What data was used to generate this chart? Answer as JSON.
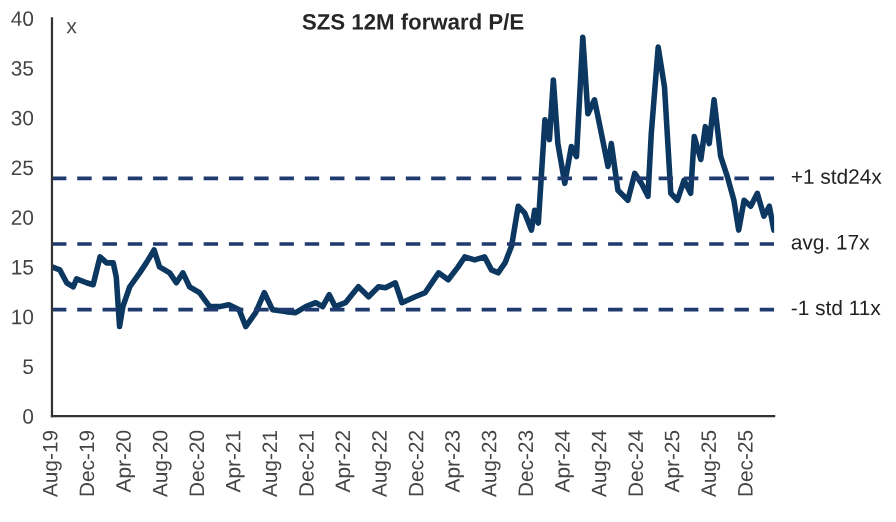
{
  "chart_data": {
    "type": "line",
    "title": "SZS 12M forward P/E",
    "ylabel": "x",
    "x": [
      "2019-08-01",
      "2019-08-27",
      "2019-09-19",
      "2019-10-11",
      "2019-10-22",
      "2019-11-24",
      "2019-12-16",
      "2020-01-08",
      "2020-01-30",
      "2020-02-21",
      "2020-03-02",
      "2020-03-13",
      "2020-03-24",
      "2020-04-16",
      "2020-05-19",
      "2020-06-10",
      "2020-07-06",
      "2020-07-24",
      "2020-08-27",
      "2020-09-18",
      "2020-10-10",
      "2020-11-01",
      "2020-12-04",
      "2021-01-07",
      "2021-02-09",
      "2021-03-12",
      "2021-04-15",
      "2021-05-07",
      "2021-06-09",
      "2021-07-08",
      "2021-08-04",
      "2021-09-17",
      "2021-10-20",
      "2021-11-23",
      "2021-12-26",
      "2022-01-18",
      "2022-02-09",
      "2022-03-01",
      "2022-04-04",
      "2022-05-17",
      "2022-06-20",
      "2022-07-23",
      "2022-08-15",
      "2022-09-17",
      "2022-10-09",
      "2022-11-22",
      "2022-12-25",
      "2023-02-08",
      "2023-03-12",
      "2023-04-14",
      "2023-05-06",
      "2023-06-08",
      "2023-07-11",
      "2023-08-03",
      "2023-08-25",
      "2023-09-17",
      "2023-10-09",
      "2023-10-31",
      "2023-11-22",
      "2023-12-14",
      "2023-12-25",
      "2024-01-06",
      "2024-01-28",
      "2024-02-12",
      "2024-02-25",
      "2024-03-11",
      "2024-04-03",
      "2024-04-25",
      "2024-05-12",
      "2024-06-02",
      "2024-06-19",
      "2024-07-11",
      "2024-08-03",
      "2024-08-25",
      "2024-09-05",
      "2024-09-27",
      "2024-10-30",
      "2024-11-22",
      "2024-12-14",
      "2025-01-05",
      "2025-01-16",
      "2025-02-08",
      "2025-03-01",
      "2025-03-22",
      "2025-04-13",
      "2025-05-05",
      "2025-05-27",
      "2025-06-08",
      "2025-06-30",
      "2025-07-15",
      "2025-07-28",
      "2025-08-13",
      "2025-09-04",
      "2025-09-26",
      "2025-10-18",
      "2025-11-03",
      "2025-11-21",
      "2025-12-13",
      "2026-01-04",
      "2026-01-26",
      "2026-02-13",
      "2026-02-28"
    ],
    "series": [
      {
        "color": "#0b3760",
        "values": [
          15.0,
          14.7,
          13.4,
          13.0,
          13.8,
          13.4,
          13.2,
          16.0,
          15.4,
          15.4,
          14.0,
          9.0,
          11.0,
          13.0,
          14.4,
          15.4,
          16.7,
          15.0,
          14.4,
          13.4,
          14.4,
          13.0,
          12.4,
          11.0,
          11.0,
          11.2,
          10.7,
          9.0,
          10.4,
          12.4,
          10.7,
          10.5,
          10.4,
          11.0,
          11.4,
          11.0,
          12.2,
          11.0,
          11.4,
          13.0,
          12.0,
          13.0,
          12.9,
          13.4,
          11.4,
          12.0,
          12.4,
          14.4,
          13.7,
          15.0,
          16.0,
          15.7,
          16.0,
          14.7,
          14.4,
          15.4,
          17.1,
          21.1,
          20.4,
          18.7,
          20.7,
          19.4,
          29.8,
          27.8,
          33.8,
          27.4,
          23.4,
          27.1,
          26.1,
          38.1,
          30.4,
          31.8,
          28.4,
          25.1,
          27.4,
          22.7,
          21.7,
          24.4,
          23.4,
          22.1,
          28.4,
          37.1,
          33.1,
          22.4,
          21.7,
          23.7,
          22.4,
          28.1,
          25.8,
          29.1,
          27.4,
          31.8,
          26.1,
          24.1,
          21.7,
          18.7,
          21.7,
          21.1,
          22.4,
          20.1,
          21.1,
          18.7
        ]
      }
    ],
    "ylim": [
      0,
      40
    ],
    "yticks": [
      0,
      5,
      10,
      15,
      20,
      25,
      30,
      35,
      40
    ],
    "xlim": [
      "2019-08-01",
      "2026-03-01"
    ],
    "xticks": [
      {
        "value": "2019-08",
        "label": "Aug-19"
      },
      {
        "value": "2019-12",
        "label": "Dec-19"
      },
      {
        "value": "2020-04",
        "label": "Apr-20"
      },
      {
        "value": "2020-08",
        "label": "Aug-20"
      },
      {
        "value": "2020-12",
        "label": "Dec-20"
      },
      {
        "value": "2021-04",
        "label": "Apr-21"
      },
      {
        "value": "2021-08",
        "label": "Aug-21"
      },
      {
        "value": "2021-12",
        "label": "Dec-21"
      },
      {
        "value": "2022-04",
        "label": "Apr-22"
      },
      {
        "value": "2022-08",
        "label": "Aug-22"
      },
      {
        "value": "2022-12",
        "label": "Dec-22"
      },
      {
        "value": "2023-04",
        "label": "Apr-23"
      },
      {
        "value": "2023-08",
        "label": "Aug-23"
      },
      {
        "value": "2023-12",
        "label": "Dec-23"
      },
      {
        "value": "2024-04",
        "label": "Apr-24"
      },
      {
        "value": "2024-08",
        "label": "Aug-24"
      },
      {
        "value": "2024-12",
        "label": "Dec-24"
      },
      {
        "value": "2025-04",
        "label": "Apr-25"
      },
      {
        "value": "2025-08",
        "label": "Aug-25"
      },
      {
        "value": "2025-12",
        "label": "Dec-25"
      }
    ],
    "ref_lines": [
      {
        "axis": "y",
        "value": 23.9,
        "label": "+1 std24x",
        "color": "#1f3a6e",
        "line_style": "dashed"
      },
      {
        "axis": "y",
        "value": 17.3,
        "label": "avg. 17x",
        "color": "#1f3a6e",
        "line_style": "dashed"
      },
      {
        "axis": "y",
        "value": 10.7,
        "label": "-1 std 11x",
        "color": "#1f3a6e",
        "line_style": "dashed"
      }
    ],
    "grid": false,
    "legend": false,
    "marker": "none",
    "line_style": "solid"
  }
}
